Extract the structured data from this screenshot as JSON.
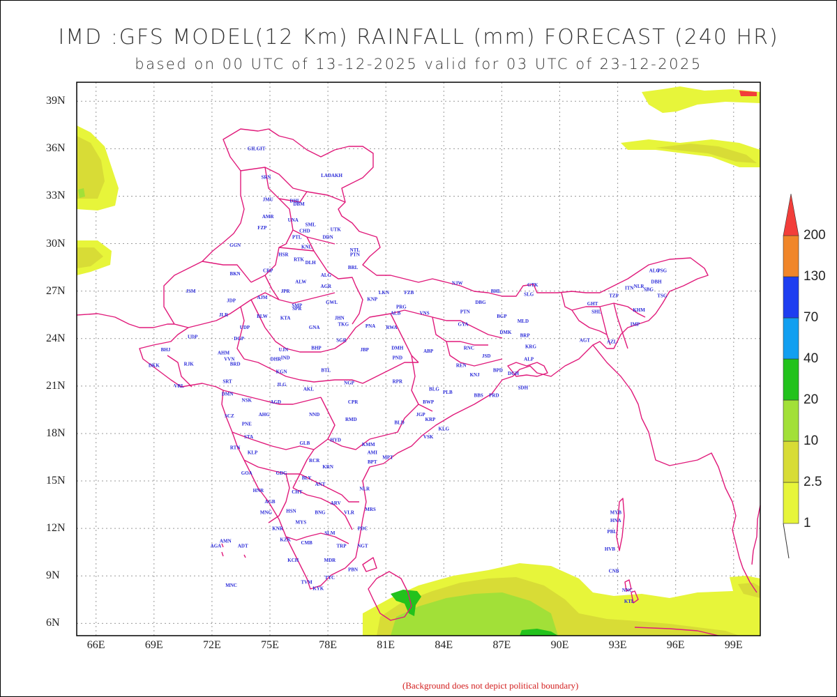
{
  "title": "IMD :GFS MODEL(12 Km) RAINFALL (mm) FORECAST (240 HR)",
  "subtitle": "based on 00 UTC of 13-12-2025 valid for 03 UTC of 23-12-2025",
  "footer": "(Background does not depict political boundary)",
  "lat_labels": [
    "39N",
    "36N",
    "33N",
    "30N",
    "27N",
    "24N",
    "21N",
    "18N",
    "15N",
    "12N",
    "9N",
    "6N"
  ],
  "lon_labels": [
    "66E",
    "69E",
    "72E",
    "75E",
    "78E",
    "81E",
    "84E",
    "87E",
    "90E",
    "93E",
    "96E",
    "99E"
  ],
  "colorbar": {
    "labels": [
      "1",
      "2.5",
      "10",
      "20",
      "40",
      "70",
      "130",
      "200"
    ],
    "colors": [
      "#e7f53a",
      "#d8dc36",
      "#a2e038",
      "#22c21c",
      "#129ff0",
      "#1e3ef0",
      "#f0862a",
      "#f23e3a"
    ]
  },
  "colors": {
    "boundary": "#e0197a",
    "city_label": "#2a2ad8",
    "footer": "#d32020"
  },
  "cities": [
    {
      "n": "GILGIT",
      "lon": 74.3,
      "lat": 35.9
    },
    {
      "n": "LADAKH",
      "lon": 78.2,
      "lat": 34.2
    },
    {
      "n": "SRN",
      "lon": 74.8,
      "lat": 34.1
    },
    {
      "n": "JMU",
      "lon": 74.9,
      "lat": 32.7
    },
    {
      "n": "DHL",
      "lon": 76.3,
      "lat": 32.6
    },
    {
      "n": "DBM",
      "lon": 76.5,
      "lat": 32.4
    },
    {
      "n": "AMR",
      "lon": 74.9,
      "lat": 31.6
    },
    {
      "n": "UNA",
      "lon": 76.2,
      "lat": 31.4
    },
    {
      "n": "SML",
      "lon": 77.1,
      "lat": 31.1
    },
    {
      "n": "FZP",
      "lon": 74.6,
      "lat": 30.9
    },
    {
      "n": "CHD",
      "lon": 76.8,
      "lat": 30.7
    },
    {
      "n": "UTK",
      "lon": 78.4,
      "lat": 30.8
    },
    {
      "n": "PTL",
      "lon": 76.4,
      "lat": 30.3
    },
    {
      "n": "DDN",
      "lon": 78.0,
      "lat": 30.3
    },
    {
      "n": "GGN",
      "lon": 73.2,
      "lat": 29.8
    },
    {
      "n": "KNL",
      "lon": 76.9,
      "lat": 29.7
    },
    {
      "n": "NTL",
      "lon": 79.4,
      "lat": 29.5
    },
    {
      "n": "PTN",
      "lon": 79.4,
      "lat": 29.2
    },
    {
      "n": "HSR",
      "lon": 75.7,
      "lat": 29.2
    },
    {
      "n": "RTK",
      "lon": 76.5,
      "lat": 28.9
    },
    {
      "n": "DLH",
      "lon": 77.1,
      "lat": 28.7
    },
    {
      "n": "BRL",
      "lon": 79.3,
      "lat": 28.4
    },
    {
      "n": "BKN",
      "lon": 73.2,
      "lat": 28.0
    },
    {
      "n": "CRP",
      "lon": 74.9,
      "lat": 28.2
    },
    {
      "n": "ALG",
      "lon": 77.9,
      "lat": 27.9
    },
    {
      "n": "ALW",
      "lon": 76.6,
      "lat": 27.5
    },
    {
      "n": "AGR",
      "lon": 77.9,
      "lat": 27.2
    },
    {
      "n": "NJW",
      "lon": 84.7,
      "lat": 27.4
    },
    {
      "n": "JSM",
      "lon": 70.9,
      "lat": 26.9
    },
    {
      "n": "JPR",
      "lon": 75.8,
      "lat": 26.9
    },
    {
      "n": "LKN",
      "lon": 80.9,
      "lat": 26.8
    },
    {
      "n": "FZB",
      "lon": 82.2,
      "lat": 26.8
    },
    {
      "n": "BHL",
      "lon": 86.7,
      "lat": 26.9
    },
    {
      "n": "GTK",
      "lon": 88.6,
      "lat": 27.3
    },
    {
      "n": "SLG",
      "lon": 88.4,
      "lat": 26.7
    },
    {
      "n": "TZP",
      "lon": 92.8,
      "lat": 26.6
    },
    {
      "n": "ITN",
      "lon": 93.6,
      "lat": 27.1
    },
    {
      "n": "JDP",
      "lon": 73.0,
      "lat": 26.3
    },
    {
      "n": "AJM",
      "lon": 74.6,
      "lat": 26.5
    },
    {
      "n": "GWL",
      "lon": 78.2,
      "lat": 26.2
    },
    {
      "n": "KNP",
      "lon": 80.3,
      "lat": 26.4
    },
    {
      "n": "DBG",
      "lon": 85.9,
      "lat": 26.2
    },
    {
      "n": "SMP",
      "lon": 76.4,
      "lat": 26.0
    },
    {
      "n": "SPR",
      "lon": 76.4,
      "lat": 25.8
    },
    {
      "n": "PRG",
      "lon": 81.8,
      "lat": 25.9
    },
    {
      "n": "ALB",
      "lon": 81.5,
      "lat": 25.5
    },
    {
      "n": "VNS",
      "lon": 83.0,
      "lat": 25.5
    },
    {
      "n": "PTN",
      "lon": 85.1,
      "lat": 25.6
    },
    {
      "n": "GHT",
      "lon": 91.7,
      "lat": 26.1
    },
    {
      "n": "SHL",
      "lon": 91.9,
      "lat": 25.6
    },
    {
      "n": "KHM",
      "lon": 94.1,
      "lat": 25.7
    },
    {
      "n": "JLR",
      "lon": 72.6,
      "lat": 25.4
    },
    {
      "n": "BLW",
      "lon": 74.6,
      "lat": 25.3
    },
    {
      "n": "KTA",
      "lon": 75.8,
      "lat": 25.2
    },
    {
      "n": "JHN",
      "lon": 78.6,
      "lat": 25.2
    },
    {
      "n": "BGP",
      "lon": 87.0,
      "lat": 25.3
    },
    {
      "n": "MLD",
      "lon": 88.1,
      "lat": 25.0
    },
    {
      "n": "TKG",
      "lon": 78.8,
      "lat": 24.8
    },
    {
      "n": "PNA",
      "lon": 80.2,
      "lat": 24.7
    },
    {
      "n": "RWA",
      "lon": 81.3,
      "lat": 24.6
    },
    {
      "n": "GYA",
      "lon": 85.0,
      "lat": 24.8
    },
    {
      "n": "GNA",
      "lon": 77.3,
      "lat": 24.6
    },
    {
      "n": "UDP",
      "lon": 73.7,
      "lat": 24.6
    },
    {
      "n": "IMP",
      "lon": 93.9,
      "lat": 24.8
    },
    {
      "n": "DMK",
      "lon": 87.2,
      "lat": 24.3
    },
    {
      "n": "BRP",
      "lon": 88.2,
      "lat": 24.1
    },
    {
      "n": "UDP",
      "lon": 71.0,
      "lat": 24.0
    },
    {
      "n": "DGP",
      "lon": 73.4,
      "lat": 23.9
    },
    {
      "n": "AGT",
      "lon": 91.3,
      "lat": 23.8
    },
    {
      "n": "SGR",
      "lon": 78.7,
      "lat": 23.8
    },
    {
      "n": "AZL",
      "lon": 92.7,
      "lat": 23.7
    },
    {
      "n": "KRG",
      "lon": 88.5,
      "lat": 23.4
    },
    {
      "n": "BHJ",
      "lon": 69.6,
      "lat": 23.2
    },
    {
      "n": "DMH",
      "lon": 81.6,
      "lat": 23.3
    },
    {
      "n": "ABP",
      "lon": 83.2,
      "lat": 23.1
    },
    {
      "n": "UJN",
      "lon": 75.7,
      "lat": 23.2
    },
    {
      "n": "BHP",
      "lon": 77.4,
      "lat": 23.3
    },
    {
      "n": "RNC",
      "lon": 85.3,
      "lat": 23.3
    },
    {
      "n": "AHM",
      "lon": 72.6,
      "lat": 23.0
    },
    {
      "n": "JBP",
      "lon": 79.9,
      "lat": 23.2
    },
    {
      "n": "IND",
      "lon": 75.8,
      "lat": 22.7
    },
    {
      "n": "JSD",
      "lon": 86.2,
      "lat": 22.8
    },
    {
      "n": "VVN",
      "lon": 72.9,
      "lat": 22.6
    },
    {
      "n": "ALP",
      "lon": 88.4,
      "lat": 22.6
    },
    {
      "n": "PND",
      "lon": 81.6,
      "lat": 22.7
    },
    {
      "n": "DKK",
      "lon": 69.0,
      "lat": 22.2
    },
    {
      "n": "RJK",
      "lon": 70.8,
      "lat": 22.3
    },
    {
      "n": "BRD",
      "lon": 73.2,
      "lat": 22.3
    },
    {
      "n": "DHR",
      "lon": 75.3,
      "lat": 22.6
    },
    {
      "n": "REN",
      "lon": 84.9,
      "lat": 22.2
    },
    {
      "n": "KGN",
      "lon": 75.6,
      "lat": 21.8
    },
    {
      "n": "BTL",
      "lon": 77.9,
      "lat": 21.9
    },
    {
      "n": "KNJ",
      "lon": 85.6,
      "lat": 21.6
    },
    {
      "n": "BPD",
      "lon": 86.8,
      "lat": 21.9
    },
    {
      "n": "DGH",
      "lon": 87.6,
      "lat": 21.7
    },
    {
      "n": "VRL",
      "lon": 70.3,
      "lat": 20.9
    },
    {
      "n": "SRT",
      "lon": 72.8,
      "lat": 21.2
    },
    {
      "n": "RPR",
      "lon": 81.6,
      "lat": 21.2
    },
    {
      "n": "NGP",
      "lon": 79.1,
      "lat": 21.1
    },
    {
      "n": "JLG",
      "lon": 75.6,
      "lat": 21.0
    },
    {
      "n": "AKL",
      "lon": 77.0,
      "lat": 20.7
    },
    {
      "n": "SDH",
      "lon": 88.1,
      "lat": 20.8
    },
    {
      "n": "BLG",
      "lon": 83.5,
      "lat": 20.7
    },
    {
      "n": "PLB",
      "lon": 84.2,
      "lat": 20.5
    },
    {
      "n": "BBS",
      "lon": 85.8,
      "lat": 20.3
    },
    {
      "n": "PRD",
      "lon": 86.6,
      "lat": 20.3
    },
    {
      "n": "DMN",
      "lon": 72.8,
      "lat": 20.4
    },
    {
      "n": "NSK",
      "lon": 73.8,
      "lat": 20.0
    },
    {
      "n": "AGD",
      "lon": 75.3,
      "lat": 19.9
    },
    {
      "n": "CPR",
      "lon": 79.3,
      "lat": 19.9
    },
    {
      "n": "BWP",
      "lon": 83.2,
      "lat": 19.9
    },
    {
      "n": "NND",
      "lon": 77.3,
      "lat": 19.1
    },
    {
      "n": "AHG",
      "lon": 74.7,
      "lat": 19.1
    },
    {
      "n": "JGP",
      "lon": 82.8,
      "lat": 19.1
    },
    {
      "n": "SCZ",
      "lon": 72.9,
      "lat": 19.0
    },
    {
      "n": "KRP",
      "lon": 83.3,
      "lat": 18.8
    },
    {
      "n": "PNE",
      "lon": 73.8,
      "lat": 18.5
    },
    {
      "n": "BLD",
      "lon": 81.7,
      "lat": 18.6
    },
    {
      "n": "RMD",
      "lon": 79.2,
      "lat": 18.8
    },
    {
      "n": "KLG",
      "lon": 84.0,
      "lat": 18.2
    },
    {
      "n": "VSK",
      "lon": 83.2,
      "lat": 17.7
    },
    {
      "n": "STA",
      "lon": 73.9,
      "lat": 17.7
    },
    {
      "n": "HYD",
      "lon": 78.4,
      "lat": 17.5
    },
    {
      "n": "GLB",
      "lon": 76.8,
      "lat": 17.3
    },
    {
      "n": "KMM",
      "lon": 80.1,
      "lat": 17.2
    },
    {
      "n": "RTN",
      "lon": 73.2,
      "lat": 17.0
    },
    {
      "n": "KLP",
      "lon": 74.1,
      "lat": 16.7
    },
    {
      "n": "AMI",
      "lon": 80.3,
      "lat": 16.7
    },
    {
      "n": "MPT",
      "lon": 81.1,
      "lat": 16.4
    },
    {
      "n": "RCR",
      "lon": 77.3,
      "lat": 16.2
    },
    {
      "n": "BPT",
      "lon": 80.3,
      "lat": 16.1
    },
    {
      "n": "KRN",
      "lon": 78.0,
      "lat": 15.8
    },
    {
      "n": "GOA",
      "lon": 73.8,
      "lat": 15.4
    },
    {
      "n": "GDG",
      "lon": 75.6,
      "lat": 15.4
    },
    {
      "n": "BLY",
      "lon": 76.9,
      "lat": 15.1
    },
    {
      "n": "ANT",
      "lon": 77.6,
      "lat": 14.7
    },
    {
      "n": "NLR",
      "lon": 79.9,
      "lat": 14.4
    },
    {
      "n": "HNR",
      "lon": 74.4,
      "lat": 14.3
    },
    {
      "n": "CHT",
      "lon": 76.4,
      "lat": 14.2
    },
    {
      "n": "ARV",
      "lon": 78.4,
      "lat": 13.5
    },
    {
      "n": "AGB",
      "lon": 75.0,
      "lat": 13.6
    },
    {
      "n": "MNG",
      "lon": 74.8,
      "lat": 12.9
    },
    {
      "n": "HSN",
      "lon": 76.1,
      "lat": 13.0
    },
    {
      "n": "VLR",
      "lon": 79.1,
      "lat": 12.9
    },
    {
      "n": "MRS",
      "lon": 80.2,
      "lat": 13.1
    },
    {
      "n": "BNG",
      "lon": 77.6,
      "lat": 12.9
    },
    {
      "n": "MYS",
      "lon": 76.6,
      "lat": 12.3
    },
    {
      "n": "KNR",
      "lon": 75.4,
      "lat": 11.9
    },
    {
      "n": "SLM",
      "lon": 78.1,
      "lat": 11.6
    },
    {
      "n": "PDC",
      "lon": 79.8,
      "lat": 11.9
    },
    {
      "n": "KZK",
      "lon": 75.8,
      "lat": 11.2
    },
    {
      "n": "AMN",
      "lon": 72.7,
      "lat": 11.1
    },
    {
      "n": "AGA",
      "lon": 72.2,
      "lat": 10.8
    },
    {
      "n": "ADT",
      "lon": 73.6,
      "lat": 10.8
    },
    {
      "n": "CMB",
      "lon": 76.9,
      "lat": 11.0
    },
    {
      "n": "TRP",
      "lon": 78.7,
      "lat": 10.8
    },
    {
      "n": "NGT",
      "lon": 79.8,
      "lat": 10.8
    },
    {
      "n": "KCH",
      "lon": 76.2,
      "lat": 9.9
    },
    {
      "n": "MDR",
      "lon": 78.1,
      "lat": 9.9
    },
    {
      "n": "PBN",
      "lon": 79.3,
      "lat": 9.3
    },
    {
      "n": "TVM",
      "lon": 76.9,
      "lat": 8.5
    },
    {
      "n": "TTC",
      "lon": 78.1,
      "lat": 8.8
    },
    {
      "n": "KYK",
      "lon": 77.5,
      "lat": 8.1
    },
    {
      "n": "MNC",
      "lon": 73.0,
      "lat": 8.3
    },
    {
      "n": "MYB",
      "lon": 92.9,
      "lat": 12.9
    },
    {
      "n": "HNA",
      "lon": 92.9,
      "lat": 12.4
    },
    {
      "n": "PBL",
      "lon": 92.7,
      "lat": 11.7
    },
    {
      "n": "HVB",
      "lon": 92.6,
      "lat": 10.6
    },
    {
      "n": "CNB",
      "lon": 92.8,
      "lat": 9.2
    },
    {
      "n": "NNC",
      "lon": 93.5,
      "lat": 8.0
    },
    {
      "n": "KTL",
      "lon": 93.6,
      "lat": 7.3
    },
    {
      "n": "ALG",
      "lon": 94.9,
      "lat": 28.2
    },
    {
      "n": "PSG",
      "lon": 95.3,
      "lat": 28.2
    },
    {
      "n": "DBH",
      "lon": 95.0,
      "lat": 27.5
    },
    {
      "n": "SBG",
      "lon": 94.6,
      "lat": 27.0
    },
    {
      "n": "NLR",
      "lon": 94.1,
      "lat": 27.2
    },
    {
      "n": "TSG",
      "lon": 95.3,
      "lat": 26.6
    }
  ]
}
